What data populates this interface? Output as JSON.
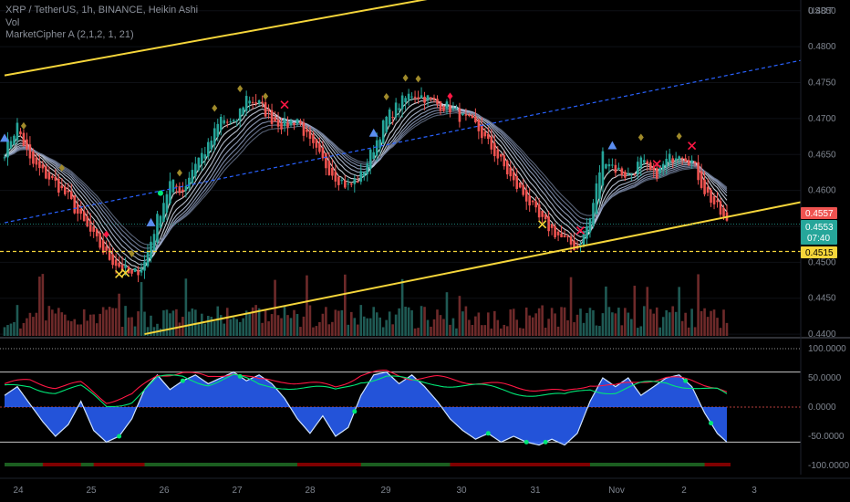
{
  "legend": {
    "symbol_line": "XRP / TetherUS, 1h, BINANCE, Heikin Ashi",
    "vol_label": "Vol",
    "indicator_label": "MarketCipher A (2,1,2, 1, 21)"
  },
  "colors": {
    "up": "#26a69a",
    "down": "#ef5350",
    "channel": "#f5d53a",
    "wave": "#2962ff",
    "money_flow_green": "#00e676",
    "money_flow_red": "#ff1744"
  },
  "price_axis": {
    "currency": "USDT",
    "ticks": [
      "0.4850",
      "0.4800",
      "0.4750",
      "0.4700",
      "0.4650",
      "0.4600",
      "0.4550",
      "0.4500",
      "0.4450",
      "0.4400"
    ]
  },
  "price_tags": {
    "upper_red": "0.4557",
    "last_price": "0.4553",
    "countdown": "07:40",
    "channel_level": "0.4515"
  },
  "oscillator_axis": {
    "ticks": [
      "100.0000",
      "50.0000",
      "0.0000",
      "-50.0000",
      "-100.0000"
    ]
  },
  "time_axis": {
    "ticks": [
      "24",
      "25",
      "26",
      "27",
      "28",
      "29",
      "30",
      "31",
      "Nov",
      "2",
      "3"
    ]
  },
  "chart_data": [
    {
      "type": "candlestick",
      "title": "XRP / TetherUS, 1h, BINANCE, Heikin Ashi",
      "ylabel": "USDT",
      "ylim": [
        0.4395,
        0.4865
      ],
      "x_dates": [
        "24",
        "25",
        "26",
        "27",
        "28",
        "29",
        "30",
        "31",
        "Nov",
        "2"
      ],
      "close_path": [
        [
          0,
          0.4655
        ],
        [
          4,
          0.469
        ],
        [
          8,
          0.464
        ],
        [
          12,
          0.4625
        ],
        [
          16,
          0.461
        ],
        [
          20,
          0.459
        ],
        [
          24,
          0.456
        ],
        [
          28,
          0.4535
        ],
        [
          32,
          0.451
        ],
        [
          36,
          0.4495
        ],
        [
          40,
          0.448
        ],
        [
          44,
          0.45
        ],
        [
          48,
          0.456
        ],
        [
          52,
          0.461
        ],
        [
          56,
          0.46
        ],
        [
          60,
          0.464
        ],
        [
          64,
          0.466
        ],
        [
          68,
          0.47
        ],
        [
          72,
          0.469
        ],
        [
          76,
          0.473
        ],
        [
          80,
          0.472
        ],
        [
          84,
          0.47
        ],
        [
          88,
          0.469
        ],
        [
          92,
          0.47
        ],
        [
          96,
          0.4665
        ],
        [
          100,
          0.464
        ],
        [
          104,
          0.462
        ],
        [
          108,
          0.4605
        ],
        [
          112,
          0.462
        ],
        [
          116,
          0.466
        ],
        [
          120,
          0.47
        ],
        [
          124,
          0.472
        ],
        [
          128,
          0.4735
        ],
        [
          132,
          0.473
        ],
        [
          136,
          0.472
        ],
        [
          140,
          0.4715
        ],
        [
          144,
          0.47
        ],
        [
          148,
          0.469
        ],
        [
          152,
          0.4665
        ],
        [
          156,
          0.464
        ],
        [
          160,
          0.461
        ],
        [
          164,
          0.459
        ],
        [
          168,
          0.456
        ],
        [
          172,
          0.4545
        ],
        [
          176,
          0.453
        ],
        [
          180,
          0.452
        ],
        [
          184,
          0.456
        ],
        [
          188,
          0.465
        ],
        [
          192,
          0.463
        ],
        [
          196,
          0.462
        ],
        [
          200,
          0.464
        ],
        [
          204,
          0.462
        ],
        [
          208,
          0.464
        ],
        [
          212,
          0.4655
        ],
        [
          216,
          0.464
        ],
        [
          220,
          0.46
        ],
        [
          224,
          0.4575
        ],
        [
          227,
          0.4553
        ]
      ],
      "series": [
        {
          "name": "Channel upper",
          "values": [
            [
              0,
              0.476
            ],
            [
              150,
              0.488
            ]
          ]
        },
        {
          "name": "Channel lower",
          "values": [
            [
              44,
              0.44
            ],
            [
              227,
              0.4563
            ]
          ]
        },
        {
          "name": "Trend line",
          "values": [
            [
              0,
              0.4555
            ],
            [
              227,
              0.476
            ]
          ]
        }
      ],
      "level": 0.4515
    },
    {
      "type": "area",
      "title": "MarketCipher A (2,1,2, 1, 21)",
      "ylim": [
        -100,
        100
      ],
      "overbought": 60,
      "oversold": -60,
      "wave": [
        [
          0,
          20
        ],
        [
          4,
          35
        ],
        [
          8,
          5
        ],
        [
          12,
          -25
        ],
        [
          16,
          -50
        ],
        [
          20,
          -30
        ],
        [
          24,
          10
        ],
        [
          28,
          -40
        ],
        [
          32,
          -60
        ],
        [
          36,
          -50
        ],
        [
          40,
          -20
        ],
        [
          44,
          30
        ],
        [
          48,
          55
        ],
        [
          52,
          30
        ],
        [
          56,
          45
        ],
        [
          60,
          55
        ],
        [
          64,
          40
        ],
        [
          68,
          50
        ],
        [
          72,
          60
        ],
        [
          76,
          45
        ],
        [
          80,
          55
        ],
        [
          84,
          40
        ],
        [
          88,
          15
        ],
        [
          92,
          -20
        ],
        [
          96,
          -45
        ],
        [
          100,
          -15
        ],
        [
          104,
          -50
        ],
        [
          108,
          -35
        ],
        [
          112,
          20
        ],
        [
          116,
          55
        ],
        [
          120,
          60
        ],
        [
          124,
          40
        ],
        [
          128,
          55
        ],
        [
          132,
          35
        ],
        [
          136,
          10
        ],
        [
          140,
          -20
        ],
        [
          144,
          -40
        ],
        [
          148,
          -55
        ],
        [
          152,
          -45
        ],
        [
          156,
          -60
        ],
        [
          160,
          -50
        ],
        [
          164,
          -60
        ],
        [
          168,
          -65
        ],
        [
          172,
          -55
        ],
        [
          176,
          -65
        ],
        [
          180,
          -45
        ],
        [
          184,
          10
        ],
        [
          188,
          50
        ],
        [
          192,
          35
        ],
        [
          196,
          50
        ],
        [
          200,
          20
        ],
        [
          204,
          35
        ],
        [
          208,
          50
        ],
        [
          212,
          55
        ],
        [
          216,
          35
        ],
        [
          220,
          -10
        ],
        [
          224,
          -45
        ],
        [
          227,
          -60
        ]
      ],
      "money_flow": [
        [
          0,
          40
        ],
        [
          8,
          45
        ],
        [
          16,
          35
        ],
        [
          24,
          40
        ],
        [
          32,
          10
        ],
        [
          40,
          20
        ],
        [
          48,
          55
        ],
        [
          56,
          60
        ],
        [
          64,
          50
        ],
        [
          72,
          60
        ],
        [
          80,
          45
        ],
        [
          88,
          45
        ],
        [
          96,
          40
        ],
        [
          104,
          35
        ],
        [
          112,
          55
        ],
        [
          120,
          60
        ],
        [
          128,
          50
        ],
        [
          136,
          50
        ],
        [
          144,
          45
        ],
        [
          152,
          40
        ],
        [
          160,
          35
        ],
        [
          168,
          30
        ],
        [
          176,
          25
        ],
        [
          184,
          40
        ],
        [
          192,
          35
        ],
        [
          200,
          45
        ],
        [
          208,
          50
        ],
        [
          216,
          45
        ],
        [
          224,
          35
        ],
        [
          227,
          25
        ]
      ]
    }
  ]
}
